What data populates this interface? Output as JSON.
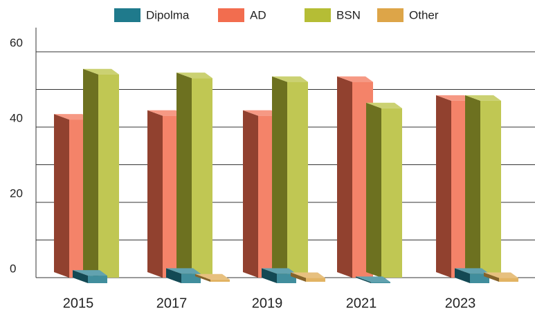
{
  "chart_data": {
    "type": "bar3d",
    "categories": [
      "2015",
      "2017",
      "2019",
      "2021",
      "2023"
    ],
    "series": [
      {
        "name": "Dipolma",
        "color": "#1f7a8c",
        "values": [
          2,
          2.5,
          2.5,
          0.3,
          2.5
        ]
      },
      {
        "name": "AD",
        "color": "#f26d4f",
        "values": [
          42,
          43,
          43,
          52,
          47
        ]
      },
      {
        "name": "BSN",
        "color": "#b5bd35",
        "values": [
          54,
          53,
          52,
          45,
          47
        ]
      },
      {
        "name": "Other",
        "color": "#dda548",
        "values": [
          0,
          0.6,
          1,
          0,
          1
        ]
      }
    ],
    "ylim": [
      0,
      60
    ],
    "yticks": [
      0,
      20,
      40,
      60
    ],
    "minor_yticks": [
      10,
      30,
      50
    ],
    "grid": true,
    "legend": "top"
  }
}
